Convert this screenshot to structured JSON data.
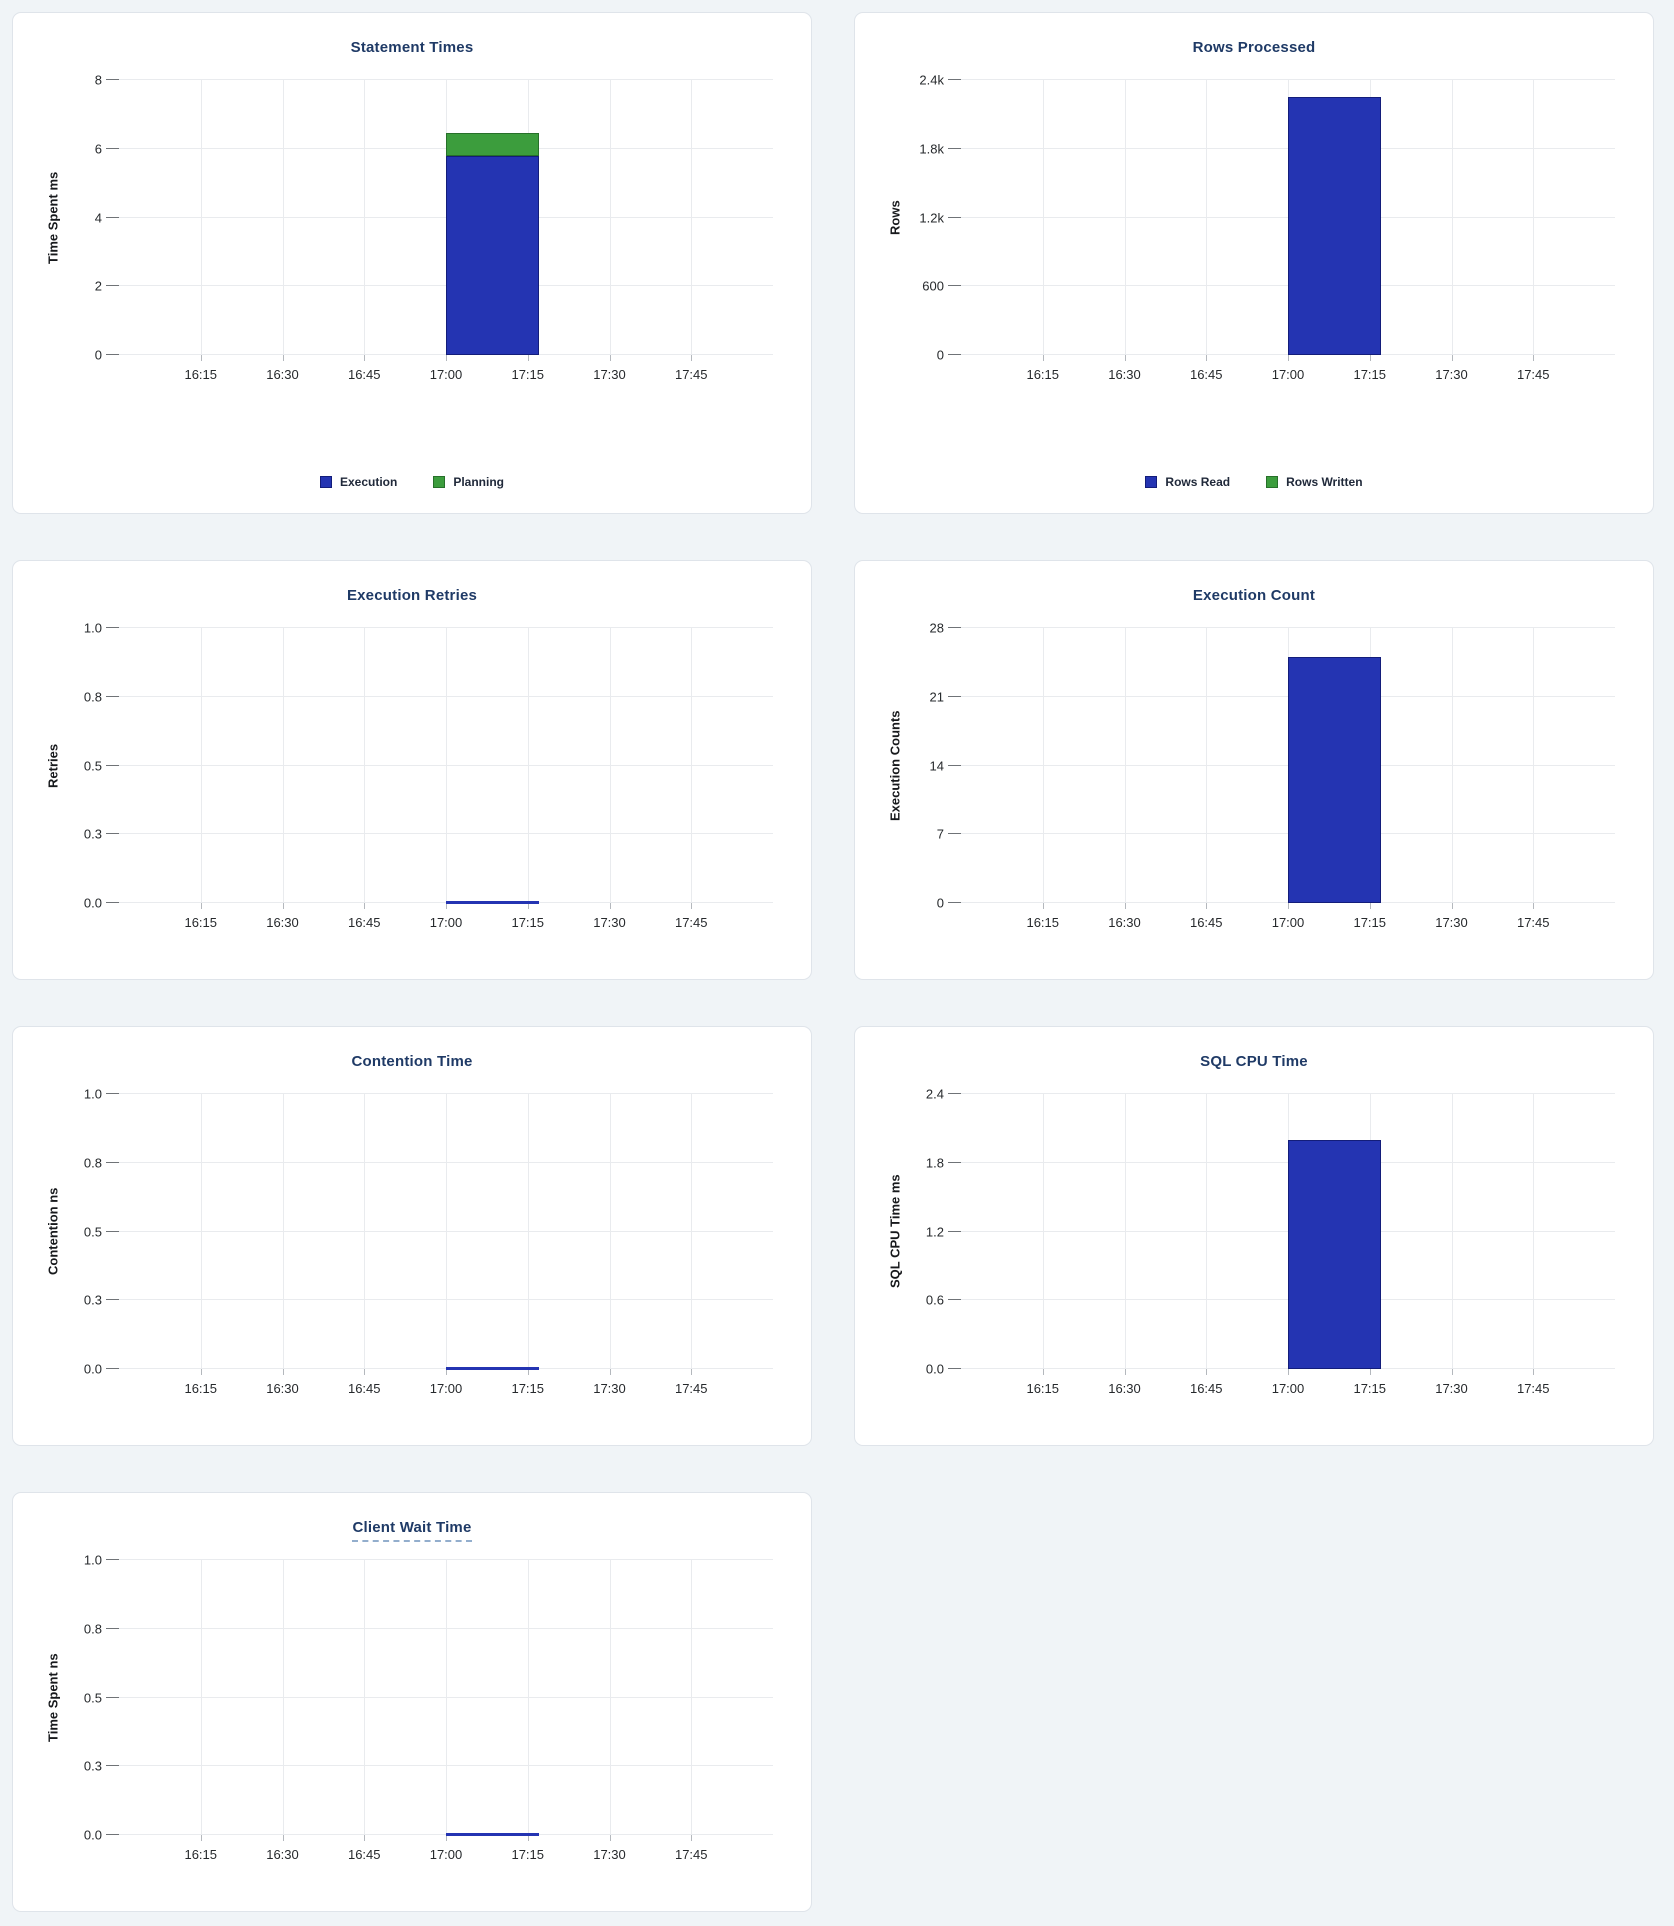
{
  "page": {
    "background_color": "#f0f4f7",
    "card_background": "#ffffff",
    "card_border_color": "#dfe4ea",
    "title_color": "#1f3a66",
    "bar_blue": "#2434b2",
    "bar_green": "#3c9d3d"
  },
  "chart_data": [
    {
      "type": "bar",
      "title": "Statement Times",
      "ylabel": "Time Spent ms",
      "ymax": 8,
      "ylim": [
        0,
        8
      ],
      "ytick_labels": [
        "0",
        "2",
        "4",
        "6",
        "8"
      ],
      "xtick_labels": [
        "16:15",
        "16:30",
        "16:45",
        "17:00",
        "17:15",
        "17:30",
        "17:45"
      ],
      "x_axis": {
        "start": "16:00",
        "end": "18:00"
      },
      "bar": {
        "x_start": "17:00",
        "x_end": "17:17"
      },
      "series": [
        {
          "name": "Execution",
          "value": 5.8,
          "color": "#2434b2",
          "border": "#131d7a"
        },
        {
          "name": "Planning",
          "value": 0.65,
          "color": "#3c9d3d",
          "border": "#27702a"
        }
      ],
      "show_legend": true,
      "legend_position": "bottom",
      "title_underline": false
    },
    {
      "type": "bar",
      "title": "Rows Processed",
      "ylabel": "Rows",
      "ymax": 2400,
      "ylim": [
        0,
        2400
      ],
      "ytick_labels": [
        "0",
        "600",
        "1.2k",
        "1.8k",
        "2.4k"
      ],
      "xtick_labels": [
        "16:15",
        "16:30",
        "16:45",
        "17:00",
        "17:15",
        "17:30",
        "17:45"
      ],
      "x_axis": {
        "start": "16:00",
        "end": "18:00"
      },
      "bar": {
        "x_start": "17:00",
        "x_end": "17:17"
      },
      "series": [
        {
          "name": "Rows Read",
          "value": 2250,
          "color": "#2434b2",
          "border": "#131d7a"
        },
        {
          "name": "Rows Written",
          "value": 0,
          "color": "#3c9d3d",
          "border": "#27702a"
        }
      ],
      "show_legend": true,
      "legend_position": "bottom",
      "title_underline": false
    },
    {
      "type": "bar",
      "title": "Execution Retries",
      "ylabel": "Retries",
      "ymax": 1,
      "ylim": [
        0,
        1
      ],
      "ytick_labels": [
        "0.0",
        "0.3",
        "0.5",
        "0.8",
        "1.0"
      ],
      "xtick_labels": [
        "16:15",
        "16:30",
        "16:45",
        "17:00",
        "17:15",
        "17:30",
        "17:45"
      ],
      "x_axis": {
        "start": "16:00",
        "end": "18:00"
      },
      "bar": {
        "x_start": "17:00",
        "x_end": "17:17"
      },
      "series": [
        {
          "name": "Retries",
          "value": 0,
          "color": "#2434b2",
          "border": "#131d7a"
        }
      ],
      "show_legend": false,
      "title_underline": false
    },
    {
      "type": "bar",
      "title": "Execution Count",
      "ylabel": "Execution Counts",
      "ymax": 28,
      "ylim": [
        0,
        28
      ],
      "ytick_labels": [
        "0",
        "7",
        "14",
        "21",
        "28"
      ],
      "xtick_labels": [
        "16:15",
        "16:30",
        "16:45",
        "17:00",
        "17:15",
        "17:30",
        "17:45"
      ],
      "x_axis": {
        "start": "16:00",
        "end": "18:00"
      },
      "bar": {
        "x_start": "17:00",
        "x_end": "17:17"
      },
      "series": [
        {
          "name": "Execution Count",
          "value": 25,
          "color": "#2434b2",
          "border": "#131d7a"
        }
      ],
      "show_legend": false,
      "title_underline": false
    },
    {
      "type": "bar",
      "title": "Contention Time",
      "ylabel": "Contention ns",
      "ymax": 1,
      "ylim": [
        0,
        1
      ],
      "ytick_labels": [
        "0.0",
        "0.3",
        "0.5",
        "0.8",
        "1.0"
      ],
      "xtick_labels": [
        "16:15",
        "16:30",
        "16:45",
        "17:00",
        "17:15",
        "17:30",
        "17:45"
      ],
      "x_axis": {
        "start": "16:00",
        "end": "18:00"
      },
      "bar": {
        "x_start": "17:00",
        "x_end": "17:17"
      },
      "series": [
        {
          "name": "Contention",
          "value": 0,
          "color": "#2434b2",
          "border": "#131d7a"
        }
      ],
      "show_legend": false,
      "title_underline": false
    },
    {
      "type": "bar",
      "title": "SQL CPU Time",
      "ylabel": "SQL CPU Time ms",
      "ymax": 2.4,
      "ylim": [
        0,
        2.4
      ],
      "ytick_labels": [
        "0.0",
        "0.6",
        "1.2",
        "1.8",
        "2.4"
      ],
      "xtick_labels": [
        "16:15",
        "16:30",
        "16:45",
        "17:00",
        "17:15",
        "17:30",
        "17:45"
      ],
      "x_axis": {
        "start": "16:00",
        "end": "18:00"
      },
      "bar": {
        "x_start": "17:00",
        "x_end": "17:17"
      },
      "series": [
        {
          "name": "SQL CPU Time",
          "value": 2.0,
          "color": "#2434b2",
          "border": "#131d7a"
        }
      ],
      "show_legend": false,
      "title_underline": false
    },
    {
      "type": "bar",
      "title": "Client Wait Time",
      "ylabel": "Time Spent ns",
      "ymax": 1,
      "ylim": [
        0,
        1
      ],
      "ytick_labels": [
        "0.0",
        "0.3",
        "0.5",
        "0.8",
        "1.0"
      ],
      "xtick_labels": [
        "16:15",
        "16:30",
        "16:45",
        "17:00",
        "17:15",
        "17:30",
        "17:45"
      ],
      "x_axis": {
        "start": "16:00",
        "end": "18:00"
      },
      "bar": {
        "x_start": "17:00",
        "x_end": "17:17"
      },
      "series": [
        {
          "name": "Client Wait",
          "value": 0,
          "color": "#2434b2",
          "border": "#131d7a"
        }
      ],
      "show_legend": false,
      "title_underline": true
    }
  ]
}
